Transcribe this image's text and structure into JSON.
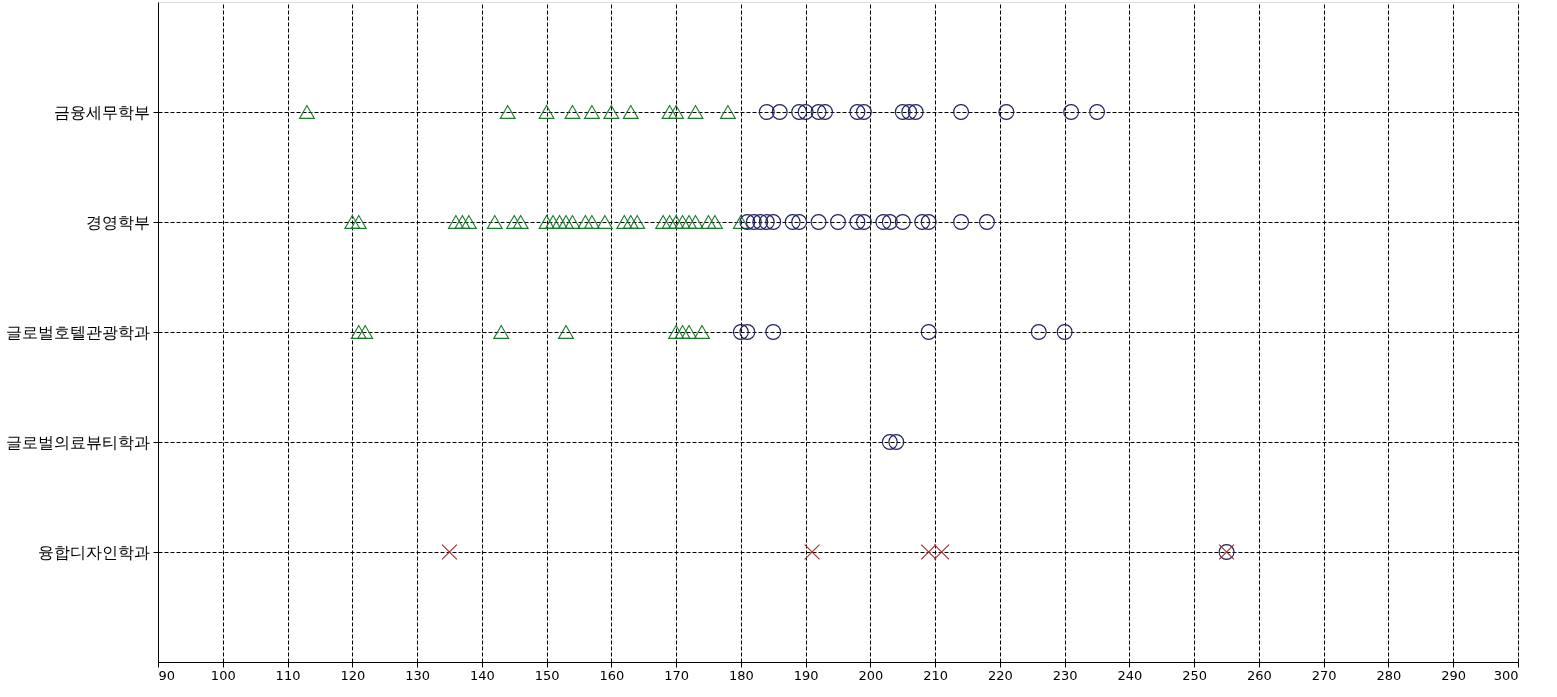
{
  "chart_data": {
    "type": "scatter",
    "orientation": "horizontal",
    "categories": [
      "금융세무학부",
      "경영학부",
      "글로벌호텔관광학과",
      "글로벌의료뷰티학과",
      "융합디자인학과"
    ],
    "xlim": [
      90,
      300
    ],
    "xticks": [
      90,
      100,
      110,
      120,
      130,
      140,
      150,
      160,
      170,
      180,
      190,
      200,
      210,
      220,
      230,
      240,
      250,
      260,
      270,
      280,
      290,
      300
    ],
    "grid": true,
    "line_style": "dashed",
    "series": [
      {
        "color": "#1a7a2a",
        "marker": "triangle",
        "values": [
          113,
          120,
          121,
          null,
          null
        ]
      },
      {
        "color": "#1a7a2a",
        "marker": "triangle",
        "values": [
          144,
          121,
          122,
          null,
          null
        ]
      },
      {
        "color": "#1a7a2a",
        "marker": "triangle",
        "values": [
          150,
          136,
          143,
          null,
          null
        ]
      },
      {
        "color": "#1a7a2a",
        "marker": "triangle",
        "values": [
          154,
          137,
          153,
          null,
          null
        ]
      },
      {
        "color": "#1a7a2a",
        "marker": "triangle",
        "values": [
          157,
          138,
          170,
          null,
          null
        ]
      },
      {
        "color": "#1a7a2a",
        "marker": "triangle",
        "values": [
          160,
          142,
          171,
          null,
          null
        ]
      },
      {
        "color": "#1a7a2a",
        "marker": "triangle",
        "values": [
          163,
          145,
          172,
          null,
          null
        ]
      },
      {
        "color": "#1a7a2a",
        "marker": "triangle",
        "values": [
          169,
          146,
          174,
          null,
          null
        ]
      },
      {
        "color": "#1a7a2a",
        "marker": "triangle",
        "values": [
          170,
          150,
          null,
          null,
          null
        ]
      },
      {
        "color": "#1a7a2a",
        "marker": "triangle",
        "values": [
          173,
          151,
          null,
          null,
          null
        ]
      },
      {
        "color": "#1a7a2a",
        "marker": "triangle",
        "values": [
          178,
          152,
          null,
          null,
          null
        ]
      },
      {
        "color": "#1a7a2a",
        "marker": "triangle",
        "values": [
          null,
          153,
          null,
          null,
          null
        ]
      },
      {
        "color": "#1a7a2a",
        "marker": "triangle",
        "values": [
          null,
          154,
          null,
          null,
          null
        ]
      },
      {
        "color": "#1a7a2a",
        "marker": "triangle",
        "values": [
          null,
          156,
          null,
          null,
          null
        ]
      },
      {
        "color": "#1a7a2a",
        "marker": "triangle",
        "values": [
          null,
          157,
          null,
          null,
          null
        ]
      },
      {
        "color": "#1a7a2a",
        "marker": "triangle",
        "values": [
          null,
          159,
          null,
          null,
          null
        ]
      },
      {
        "color": "#1a7a2a",
        "marker": "triangle",
        "values": [
          null,
          162,
          null,
          null,
          null
        ]
      },
      {
        "color": "#1a7a2a",
        "marker": "triangle",
        "values": [
          null,
          163,
          null,
          null,
          null
        ]
      },
      {
        "color": "#1a7a2a",
        "marker": "triangle",
        "values": [
          null,
          164,
          null,
          null,
          null
        ]
      },
      {
        "color": "#1a7a2a",
        "marker": "triangle",
        "values": [
          null,
          168,
          null,
          null,
          null
        ]
      },
      {
        "color": "#1a7a2a",
        "marker": "triangle",
        "values": [
          null,
          169,
          null,
          null,
          null
        ]
      },
      {
        "color": "#1a7a2a",
        "marker": "triangle",
        "values": [
          null,
          170,
          null,
          null,
          null
        ]
      },
      {
        "color": "#1a7a2a",
        "marker": "triangle",
        "values": [
          null,
          171,
          null,
          null,
          null
        ]
      },
      {
        "color": "#1a7a2a",
        "marker": "triangle",
        "values": [
          null,
          172,
          null,
          null,
          null
        ]
      },
      {
        "color": "#1a7a2a",
        "marker": "triangle",
        "values": [
          null,
          173,
          null,
          null,
          null
        ]
      },
      {
        "color": "#1a7a2a",
        "marker": "triangle",
        "values": [
          null,
          175,
          null,
          null,
          null
        ]
      },
      {
        "color": "#1a7a2a",
        "marker": "triangle",
        "values": [
          null,
          176,
          null,
          null,
          null
        ]
      },
      {
        "color": "#1a7a2a",
        "marker": "triangle",
        "values": [
          null,
          180,
          null,
          null,
          null
        ]
      },
      {
        "color": "#1f2060",
        "marker": "circle",
        "values": [
          184,
          181,
          180,
          203,
          255
        ]
      },
      {
        "color": "#1f2060",
        "marker": "circle",
        "values": [
          186,
          182,
          181,
          204,
          null
        ]
      },
      {
        "color": "#1f2060",
        "marker": "circle",
        "values": [
          189,
          183,
          185,
          null,
          null
        ]
      },
      {
        "color": "#1f2060",
        "marker": "circle",
        "values": [
          190,
          184,
          209,
          null,
          null
        ]
      },
      {
        "color": "#1f2060",
        "marker": "circle",
        "values": [
          192,
          185,
          226,
          null,
          null
        ]
      },
      {
        "color": "#1f2060",
        "marker": "circle",
        "values": [
          193,
          188,
          230,
          null,
          null
        ]
      },
      {
        "color": "#1f2060",
        "marker": "circle",
        "values": [
          198,
          189,
          null,
          null,
          null
        ]
      },
      {
        "color": "#1f2060",
        "marker": "circle",
        "values": [
          199,
          192,
          null,
          null,
          null
        ]
      },
      {
        "color": "#1f2060",
        "marker": "circle",
        "values": [
          205,
          195,
          null,
          null,
          null
        ]
      },
      {
        "color": "#1f2060",
        "marker": "circle",
        "values": [
          206,
          198,
          null,
          null,
          null
        ]
      },
      {
        "color": "#1f2060",
        "marker": "circle",
        "values": [
          207,
          199,
          null,
          null,
          null
        ]
      },
      {
        "color": "#1f2060",
        "marker": "circle",
        "values": [
          214,
          202,
          null,
          null,
          null
        ]
      },
      {
        "color": "#1f2060",
        "marker": "circle",
        "values": [
          221,
          203,
          null,
          null,
          null
        ]
      },
      {
        "color": "#1f2060",
        "marker": "circle",
        "values": [
          231,
          205,
          null,
          null,
          null
        ]
      },
      {
        "color": "#1f2060",
        "marker": "circle",
        "values": [
          235,
          208,
          null,
          null,
          null
        ]
      },
      {
        "color": "#1f2060",
        "marker": "circle",
        "values": [
          null,
          209,
          null,
          null,
          null
        ]
      },
      {
        "color": "#1f2060",
        "marker": "circle",
        "values": [
          null,
          214,
          null,
          null,
          null
        ]
      },
      {
        "color": "#1f2060",
        "marker": "circle",
        "values": [
          null,
          218,
          null,
          null,
          null
        ]
      },
      {
        "color": "#a52a2a",
        "marker": "cross",
        "values": [
          null,
          null,
          null,
          null,
          135
        ]
      },
      {
        "color": "#a52a2a",
        "marker": "cross",
        "values": [
          null,
          null,
          null,
          null,
          191
        ]
      },
      {
        "color": "#a52a2a",
        "marker": "cross",
        "values": [
          null,
          null,
          null,
          null,
          209
        ]
      },
      {
        "color": "#a52a2a",
        "marker": "cross",
        "values": [
          null,
          null,
          null,
          null,
          211
        ]
      },
      {
        "color": "#a52a2a",
        "marker": "cross",
        "values": [
          null,
          null,
          null,
          null,
          255
        ]
      }
    ]
  }
}
